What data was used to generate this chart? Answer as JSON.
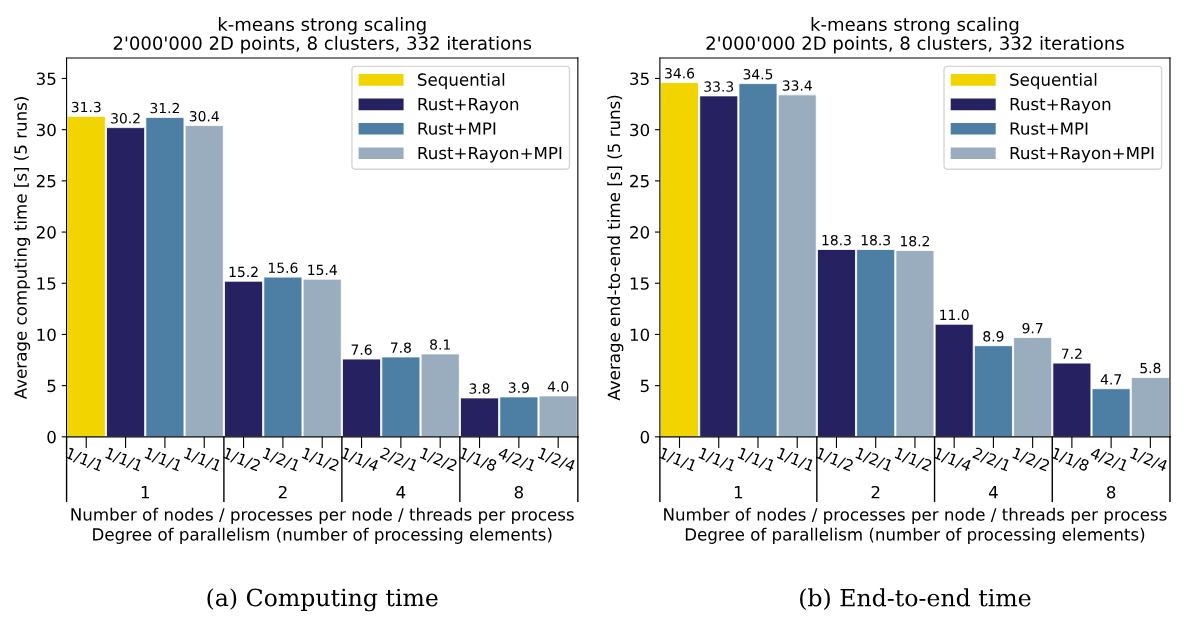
{
  "chart_data": [
    {
      "type": "bar",
      "title": "k-means strong scaling\n2'000'000 2D points, 8 clusters, 332 iterations",
      "ylabel": "Average computing time [s] (5 runs)",
      "xlabel": "Number of nodes / processes per node / threads per process\nDegree of parallelism (number of processing elements)",
      "categories": [
        "1/1/1",
        "1/1/1",
        "1/1/1",
        "1/1/1",
        "1/1/2",
        "1/2/1",
        "1/1/2",
        "1/1/4",
        "2/2/1",
        "1/2/2",
        "1/1/8",
        "4/2/1",
        "1/2/4"
      ],
      "series": [
        {
          "name": "Sequential",
          "color": "#f2d500",
          "values": [
            31.3,
            null,
            null,
            null,
            null,
            null,
            null,
            null,
            null,
            null,
            null,
            null,
            null
          ],
          "value_labels": [
            "31.3",
            null,
            null,
            null,
            null,
            null,
            null,
            null,
            null,
            null,
            null,
            null,
            null
          ]
        },
        {
          "name": "Rust+Rayon",
          "color": "#262262",
          "values": [
            null,
            30.2,
            null,
            null,
            15.2,
            null,
            null,
            7.6,
            null,
            null,
            3.8,
            null,
            null
          ],
          "value_labels": [
            null,
            "30.2",
            null,
            null,
            "15.2",
            null,
            null,
            "7.6",
            null,
            null,
            "3.8",
            null,
            null
          ]
        },
        {
          "name": "Rust+MPI",
          "color": "#4d7fa5",
          "values": [
            null,
            null,
            31.2,
            null,
            null,
            15.6,
            null,
            null,
            7.8,
            null,
            null,
            3.9,
            null
          ],
          "value_labels": [
            null,
            null,
            "31.2",
            null,
            null,
            "15.6",
            null,
            null,
            "7.8",
            null,
            null,
            "3.9",
            null
          ]
        },
        {
          "name": "Rust+Rayon+MPI",
          "color": "#9aadbf",
          "values": [
            null,
            null,
            null,
            30.4,
            null,
            null,
            15.4,
            null,
            null,
            8.1,
            null,
            null,
            4.0
          ],
          "value_labels": [
            null,
            null,
            null,
            "30.4",
            null,
            null,
            "15.4",
            null,
            null,
            "8.1",
            null,
            null,
            "4.0"
          ]
        }
      ],
      "ylim": [
        0,
        37
      ],
      "yticks": [
        0,
        5,
        10,
        15,
        20,
        25,
        30,
        35
      ],
      "grid": false,
      "legend": "top right",
      "annotations": [
        "1",
        "2",
        "4",
        "8",
        "(a) Computing time"
      ]
    },
    {
      "type": "bar",
      "title": "k-means strong scaling\n2'000'000 2D points, 8 clusters, 332 iterations",
      "ylabel": "Average end-to-end time [s] (5 runs)",
      "xlabel": "Number of nodes / processes per node / threads per process\nDegree of parallelism (number of processing elements)",
      "categories": [
        "1/1/1",
        "1/1/1",
        "1/1/1",
        "1/1/1",
        "1/1/2",
        "1/2/1",
        "1/1/2",
        "1/1/4",
        "2/2/1",
        "1/2/2",
        "1/1/8",
        "4/2/1",
        "1/2/4"
      ],
      "series": [
        {
          "name": "Sequential",
          "color": "#f2d500",
          "values": [
            34.6,
            null,
            null,
            null,
            null,
            null,
            null,
            null,
            null,
            null,
            null,
            null,
            null
          ],
          "value_labels": [
            "34.6",
            null,
            null,
            null,
            null,
            null,
            null,
            null,
            null,
            null,
            null,
            null,
            null
          ]
        },
        {
          "name": "Rust+Rayon",
          "color": "#262262",
          "values": [
            null,
            33.3,
            null,
            null,
            18.3,
            null,
            null,
            11.0,
            null,
            null,
            7.2,
            null,
            null
          ],
          "value_labels": [
            null,
            "33.3",
            null,
            null,
            "18.3",
            null,
            null,
            "11.0",
            null,
            null,
            "7.2",
            null,
            null
          ]
        },
        {
          "name": "Rust+MPI",
          "color": "#4d7fa5",
          "values": [
            null,
            null,
            34.5,
            null,
            null,
            18.3,
            null,
            null,
            8.9,
            null,
            null,
            4.7,
            null
          ],
          "value_labels": [
            null,
            null,
            "34.5",
            null,
            null,
            "18.3",
            null,
            null,
            "8.9",
            null,
            null,
            "4.7",
            null
          ]
        },
        {
          "name": "Rust+Rayon+MPI",
          "color": "#9aadbf",
          "values": [
            null,
            null,
            null,
            33.4,
            null,
            null,
            18.2,
            null,
            null,
            9.7,
            null,
            null,
            5.8
          ],
          "value_labels": [
            null,
            null,
            null,
            "33.4",
            null,
            null,
            "18.2",
            null,
            null,
            "9.7",
            null,
            null,
            "5.8"
          ]
        }
      ],
      "ylim": [
        0,
        37
      ],
      "yticks": [
        0,
        5,
        10,
        15,
        20,
        25,
        30,
        35
      ],
      "grid": false,
      "legend": "top right",
      "annotations": [
        "1",
        "2",
        "4",
        "8",
        "(b) End-to-end time"
      ]
    }
  ]
}
